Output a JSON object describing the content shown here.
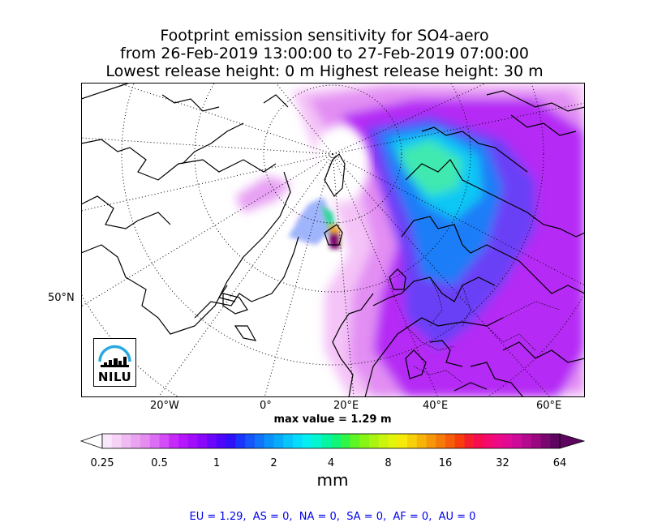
{
  "title": {
    "line1": "Footprint emission sensitivity for SO4-aero",
    "line2": "from 26-Feb-2019 13:00:00 to 27-Feb-2019 07:00:00",
    "line3": "Lowest release height: 0 m      Highest release height: 30 m"
  },
  "map": {
    "lat_label": "50°N",
    "lon_labels": [
      "20°W",
      "0°",
      "20°E",
      "40°E",
      "60°E"
    ],
    "max_value": "max value = 1.29 m",
    "logo_text": "NILU"
  },
  "colorbar": {
    "ticks": [
      "0.25",
      "0.5",
      "1",
      "2",
      "4",
      "8",
      "16",
      "32",
      "64"
    ],
    "unit": "mm",
    "colors": [
      "#fbe7fb",
      "#f6d2f6",
      "#f0baf3",
      "#eaa3f0",
      "#e48cf0",
      "#dc6ef5",
      "#d34cf7",
      "#c62af9",
      "#b616fb",
      "#a10cfb",
      "#8a07fb",
      "#6c05fb",
      "#4d05fb",
      "#3010fb",
      "#1a35fb",
      "#1556fb",
      "#1074fb",
      "#0a92fb",
      "#08abfb",
      "#05c5fb",
      "#05dcfb",
      "#04efef",
      "#04f5cf",
      "#05f5a5",
      "#0ef57a",
      "#2ff546",
      "#5df523",
      "#86f515",
      "#aaf510",
      "#c9f50e",
      "#e4f50c",
      "#f6ea0a",
      "#f6d009",
      "#f6b409",
      "#f69709",
      "#f67a09",
      "#f65c0a",
      "#f63d0b",
      "#f61e2d",
      "#f60c4f",
      "#f60a6d",
      "#ee0a86",
      "#e00a95",
      "#cd0b98",
      "#b50a90",
      "#990881",
      "#7c0670",
      "#5e0560"
    ]
  },
  "region_summary": "EU = 1.29,  AS = 0,  NA = 0,  SA = 0,  AF = 0,  AU = 0"
}
